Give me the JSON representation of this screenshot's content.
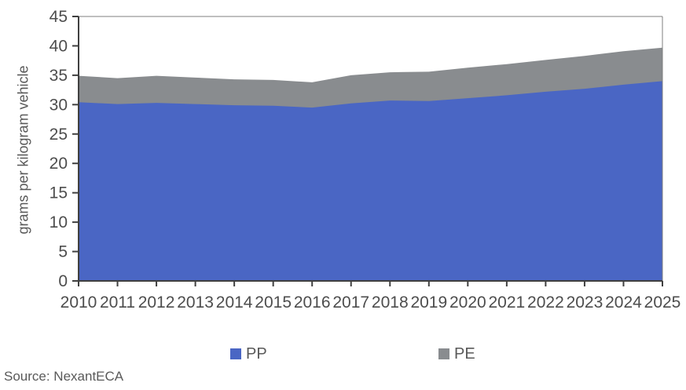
{
  "chart_data": {
    "type": "area",
    "stacked": true,
    "title": "",
    "xlabel": "",
    "ylabel": "grams per kilogram vehicle",
    "categories": [
      "2010",
      "2011",
      "2012",
      "2013",
      "2014",
      "2015",
      "2016",
      "2017",
      "2018",
      "2019",
      "2020",
      "2021",
      "2022",
      "2023",
      "2024",
      "2025"
    ],
    "series": [
      {
        "name": "PP",
        "color": "#4a66c4",
        "values": [
          30.4,
          30.1,
          30.3,
          30.1,
          29.9,
          29.8,
          29.5,
          30.2,
          30.7,
          30.6,
          31.1,
          31.6,
          32.2,
          32.7,
          33.4,
          34.0
        ]
      },
      {
        "name": "PE",
        "color": "#898c8f",
        "values": [
          4.5,
          4.4,
          4.6,
          4.5,
          4.4,
          4.4,
          4.3,
          4.8,
          4.8,
          5.0,
          5.2,
          5.3,
          5.4,
          5.6,
          5.7,
          5.7
        ]
      }
    ],
    "ylim": [
      0,
      45
    ],
    "ytick_step": 5,
    "grid": false,
    "legend_position": "bottom",
    "plot_border": true,
    "axis_color": "#404040",
    "border_color": "#7f7f7f",
    "tick_label_color": "#4d4d4d"
  },
  "legend": {
    "pp_label": "PP",
    "pe_label": "PE"
  },
  "source": {
    "text": "Source: NexantECA"
  }
}
